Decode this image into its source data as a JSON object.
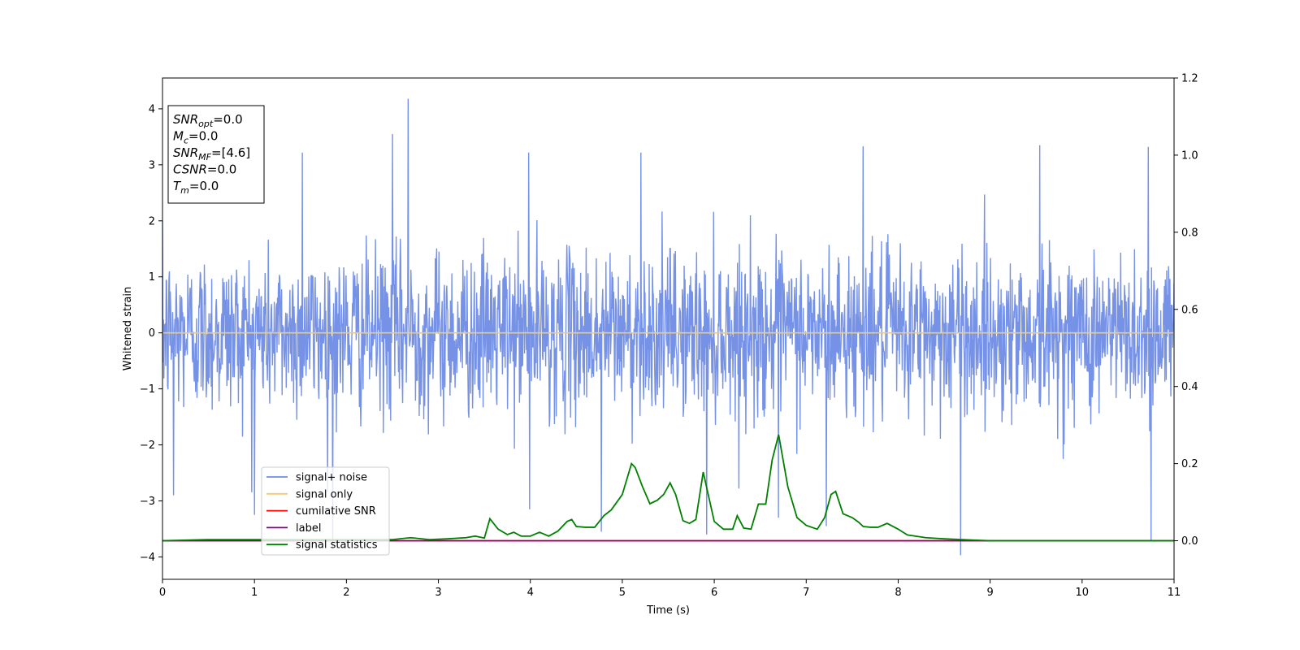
{
  "chart_data": {
    "type": "line",
    "xlabel": "Time (s)",
    "ylabel": "Whitened strain",
    "xlim": [
      0,
      11
    ],
    "ylim": [
      -4.4,
      4.55
    ],
    "y2lim": [
      -0.1,
      1.2
    ],
    "xticks": [
      0,
      1,
      2,
      3,
      4,
      5,
      6,
      7,
      8,
      9,
      10,
      11
    ],
    "yticks": [
      -4,
      -3,
      -2,
      -1,
      0,
      1,
      2,
      3,
      4
    ],
    "y2ticks": [
      0.0,
      0.2,
      0.4,
      0.6,
      0.8,
      1.0,
      1.2
    ],
    "grid": false,
    "legend_position": "lower-left",
    "info_box": {
      "lines": [
        {
          "base": "SNR",
          "sub": "opt",
          "value": "=0.0"
        },
        {
          "base": "M",
          "sub": "c",
          "value": "=0.0"
        },
        {
          "base": "SNR",
          "sub": "MF",
          "value": "=[4.6]"
        },
        {
          "base": "CSNR",
          "sub": "",
          "value": "=0.0"
        },
        {
          "base": "T",
          "sub": "m",
          "value": "=0.0"
        }
      ]
    },
    "series": [
      {
        "name": "signal+ noise",
        "color": "#6f8ce6",
        "axis": "left",
        "description_kind": "noise",
        "sigma": 0.72,
        "duration_s": 11,
        "samples": 2200,
        "spikes": [
          {
            "x": 2.67,
            "y": 4.18
          },
          {
            "x": 2.5,
            "y": 3.55
          },
          {
            "x": 1.52,
            "y": 3.22
          },
          {
            "x": 10.72,
            "y": 3.32
          },
          {
            "x": 7.62,
            "y": 3.33
          },
          {
            "x": 9.54,
            "y": 3.35
          },
          {
            "x": 5.2,
            "y": 3.22
          },
          {
            "x": 3.98,
            "y": 3.22
          },
          {
            "x": 8.68,
            "y": -3.97
          },
          {
            "x": 10.75,
            "y": -3.72
          },
          {
            "x": 1.85,
            "y": -3.85
          },
          {
            "x": 5.92,
            "y": -3.6
          },
          {
            "x": 4.77,
            "y": -3.55
          },
          {
            "x": 7.22,
            "y": -3.45
          },
          {
            "x": 3.99,
            "y": -3.15
          },
          {
            "x": 0.12,
            "y": -2.9
          },
          {
            "x": 1.0,
            "y": -3.25
          },
          {
            "x": 6.7,
            "y": -3.3
          }
        ]
      },
      {
        "name": "signal only",
        "color": "#f5c96a",
        "axis": "left",
        "x": [
          0,
          11
        ],
        "y": [
          0,
          0
        ]
      },
      {
        "name": "cumilative SNR",
        "color": "#ff0000",
        "axis": "right",
        "x": [
          0,
          11
        ],
        "y": [
          0,
          0
        ]
      },
      {
        "name": "label",
        "color": "#800080",
        "axis": "right",
        "x": [
          0,
          11
        ],
        "y": [
          0,
          0
        ]
      },
      {
        "name": "signal statistics",
        "color": "#008000",
        "axis": "right",
        "x": [
          0,
          0.5,
          1.0,
          1.5,
          2.0,
          2.5,
          2.7,
          2.9,
          3.1,
          3.3,
          3.4,
          3.5,
          3.56,
          3.65,
          3.75,
          3.82,
          3.9,
          4.0,
          4.1,
          4.2,
          4.3,
          4.4,
          4.45,
          4.5,
          4.6,
          4.7,
          4.8,
          4.88,
          5.0,
          5.1,
          5.14,
          5.22,
          5.3,
          5.38,
          5.45,
          5.52,
          5.58,
          5.66,
          5.73,
          5.8,
          5.88,
          6.0,
          6.1,
          6.2,
          6.25,
          6.32,
          6.4,
          6.48,
          6.56,
          6.63,
          6.7,
          6.8,
          6.9,
          7.0,
          7.12,
          7.2,
          7.27,
          7.32,
          7.4,
          7.5,
          7.57,
          7.62,
          7.7,
          7.78,
          7.88,
          8.0,
          8.1,
          8.3,
          8.5,
          8.8,
          9.0,
          9.5,
          10.0,
          11.0
        ],
        "y": [
          0.0,
          0.003,
          0.003,
          0.003,
          0.003,
          0.003,
          0.008,
          0.003,
          0.005,
          0.008,
          0.012,
          0.007,
          0.057,
          0.03,
          0.016,
          0.022,
          0.012,
          0.012,
          0.022,
          0.012,
          0.025,
          0.05,
          0.055,
          0.037,
          0.035,
          0.035,
          0.065,
          0.08,
          0.12,
          0.2,
          0.19,
          0.14,
          0.096,
          0.105,
          0.12,
          0.15,
          0.12,
          0.052,
          0.045,
          0.055,
          0.178,
          0.05,
          0.03,
          0.03,
          0.065,
          0.033,
          0.03,
          0.095,
          0.095,
          0.21,
          0.275,
          0.14,
          0.06,
          0.04,
          0.03,
          0.06,
          0.12,
          0.128,
          0.07,
          0.06,
          0.048,
          0.037,
          0.035,
          0.035,
          0.045,
          0.03,
          0.015,
          0.008,
          0.005,
          0.002,
          0.0,
          0.0,
          0.0,
          0.0
        ]
      }
    ]
  }
}
